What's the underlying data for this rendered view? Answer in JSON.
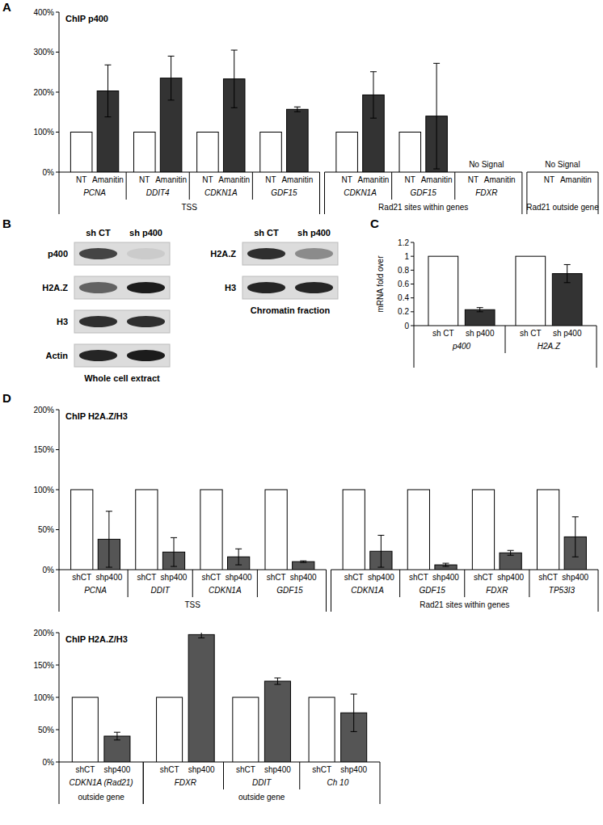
{
  "chart_data": [
    {
      "type": "bar",
      "panel": "A",
      "title": "ChIP p400",
      "categories": [
        "PCNA",
        "DDIT4",
        "CDKN1A",
        "GDF15",
        "CDKN1A",
        "GDF15",
        "FDXR",
        null
      ],
      "groups": [
        {
          "label": "TSS",
          "first": 0,
          "last": 3
        },
        {
          "label": "Rad21 sites within genes",
          "first": 4,
          "last": 6
        },
        {
          "label": "Rad21 outside gene",
          "first": 7,
          "last": 7
        }
      ],
      "series": [
        {
          "name": "NT",
          "color": "#ffffff",
          "values": [
            100,
            100,
            100,
            100,
            100,
            100,
            null,
            null
          ]
        },
        {
          "name": "Amanitin",
          "color": "#333333",
          "values": [
            203,
            235,
            233,
            157,
            193,
            140,
            null,
            null
          ],
          "errors": [
            65,
            55,
            72,
            6,
            58,
            132,
            null,
            null
          ]
        }
      ],
      "annotations": [
        {
          "text": "No Signal",
          "category": 6
        },
        {
          "text": "No Signal",
          "category": 7
        }
      ],
      "ylim": [
        0,
        400
      ],
      "yticks": [
        {
          "value": 0,
          "label": "0%"
        },
        {
          "value": 100,
          "label": "100%"
        },
        {
          "value": 200,
          "label": "200%"
        },
        {
          "value": 300,
          "label": "300%"
        },
        {
          "value": 400,
          "label": "400%"
        }
      ]
    },
    {
      "type": "bar",
      "panel": "C",
      "y_label": "mRNA fold over",
      "categories": [
        "p400",
        "H2A.Z"
      ],
      "series": [
        {
          "name": "sh CT",
          "color": "#ffffff",
          "values": [
            1,
            1
          ]
        },
        {
          "name": "sh p400",
          "color": "#333333",
          "values": [
            0.23,
            0.75
          ],
          "errors": [
            0.03,
            0.13
          ]
        }
      ],
      "ylim": [
        0,
        1.2
      ],
      "yticks": [
        0,
        0.2,
        0.4,
        0.6,
        0.8,
        1,
        1.2
      ]
    },
    {
      "type": "bar",
      "panel": "D",
      "title": "ChIP H2A.Z/H3",
      "categories": [
        "PCNA",
        "DDIT",
        "CDKN1A",
        "GDF15",
        "CDKN1A",
        "GDF15",
        "FDXR",
        "TP53I3"
      ],
      "groups": [
        {
          "label": "TSS",
          "first": 0,
          "last": 3
        },
        {
          "label": "Rad21 sites within genes",
          "first": 4,
          "last": 7
        }
      ],
      "series": [
        {
          "name": "shCT",
          "color": "#ffffff",
          "values": [
            100,
            100,
            100,
            100,
            100,
            100,
            100,
            100
          ]
        },
        {
          "name": "shp400",
          "color": "#555555",
          "values": [
            38,
            22,
            16,
            10,
            23,
            6,
            21,
            41
          ],
          "errors": [
            35,
            18,
            10,
            1,
            20,
            2,
            3,
            25
          ]
        }
      ],
      "ylim": [
        0,
        200
      ],
      "yticks": [
        {
          "value": 0,
          "label": "0%"
        },
        {
          "value": 50,
          "label": "50%"
        },
        {
          "value": 100,
          "label": "100%"
        },
        {
          "value": 150,
          "label": "150%"
        },
        {
          "value": 200,
          "label": "200%"
        }
      ]
    },
    {
      "type": "bar",
      "title": "ChIP H2A.Z/H3",
      "categories": [
        "CDKN1A (Rad21)",
        "FDXR",
        "DDIT",
        "Ch 10"
      ],
      "groups": [
        {
          "label": "outside gene",
          "first": 0,
          "last": 0
        },
        {
          "label": "outside gene",
          "first": 1,
          "last": 3
        }
      ],
      "series": [
        {
          "name": "shCT",
          "color": "#ffffff",
          "values": [
            100,
            100,
            100,
            100
          ]
        },
        {
          "name": "shp400",
          "color": "#555555",
          "values": [
            40,
            197,
            125,
            76
          ],
          "errors": [
            6,
            5,
            5,
            29
          ]
        }
      ],
      "ylim": [
        0,
        200
      ],
      "yticks": [
        {
          "value": 0,
          "label": "0%"
        },
        {
          "value": 50,
          "label": "50%"
        },
        {
          "value": 100,
          "label": "100%"
        },
        {
          "value": 150,
          "label": "150%"
        },
        {
          "value": 200,
          "label": "200%"
        }
      ]
    }
  ],
  "blots": {
    "panel": "B",
    "panels": [
      {
        "caption": "Whole cell extract",
        "columns": [
          "sh CT",
          "sh p400"
        ],
        "rows": [
          {
            "label": "p400",
            "signal": [
              0.75,
              0.08
            ]
          },
          {
            "label": "H2A.Z",
            "signal": [
              0.6,
              0.95
            ]
          },
          {
            "label": "H3",
            "signal": [
              0.85,
              0.85
            ]
          },
          {
            "label": "Actin",
            "signal": [
              0.9,
              0.95
            ]
          }
        ]
      },
      {
        "caption": "Chromatin fraction",
        "columns": [
          "sh CT",
          "sh p400"
        ],
        "rows": [
          {
            "label": "H2A.Z",
            "signal": [
              0.85,
              0.4
            ]
          },
          {
            "label": "H3",
            "signal": [
              0.9,
              0.9
            ]
          }
        ]
      }
    ]
  }
}
